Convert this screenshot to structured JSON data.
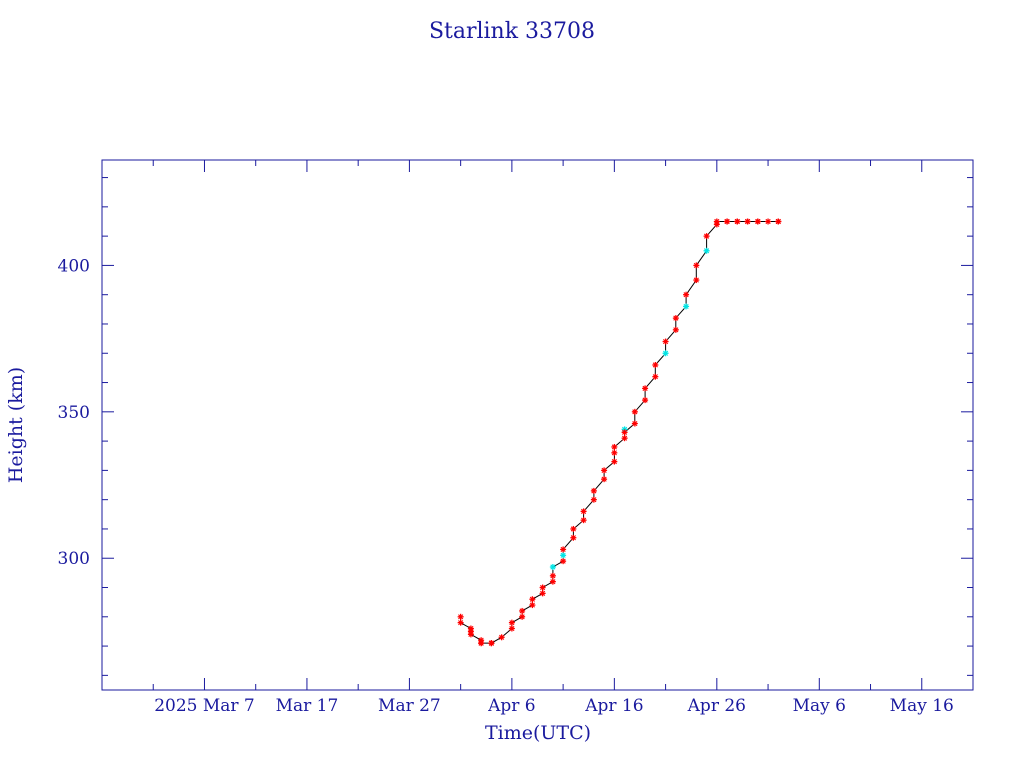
{
  "chart_data": {
    "type": "line",
    "title": "Starlink 33708",
    "xlabel": "Time(UTC)",
    "ylabel": "Height (km)",
    "x_tick_labels": [
      "2025 Mar  7",
      "Mar 17",
      "Mar 27",
      "Apr  6",
      "Apr 16",
      "Apr 26",
      "May  6",
      "May 16"
    ],
    "x_tick_dates": [
      "2025-03-07",
      "2025-03-17",
      "2025-03-27",
      "2025-04-06",
      "2025-04-16",
      "2025-04-26",
      "2025-05-06",
      "2025-05-16"
    ],
    "xlim": [
      "2025-02-25",
      "2025-05-21"
    ],
    "y_ticks": [
      300,
      350,
      400
    ],
    "ylim": [
      255,
      436
    ],
    "grid": false,
    "colors": {
      "axis": "#1a1a9e",
      "line": "#000000",
      "marker": "#ff0000",
      "marker_alt": "#00e5e5"
    },
    "series": [
      {
        "x": [
          "2025-04-01",
          "2025-04-01",
          "2025-04-02",
          "2025-04-02",
          "2025-04-02",
          "2025-04-03",
          "2025-04-03",
          "2025-04-03",
          "2025-04-04",
          "2025-04-04",
          "2025-04-04",
          "2025-04-05",
          "2025-04-06",
          "2025-04-06",
          "2025-04-07",
          "2025-04-07",
          "2025-04-08",
          "2025-04-08",
          "2025-04-09",
          "2025-04-09",
          "2025-04-10",
          "2025-04-10",
          "2025-04-10",
          "2025-04-11",
          "2025-04-11",
          "2025-04-11",
          "2025-04-12",
          "2025-04-12",
          "2025-04-13",
          "2025-04-13",
          "2025-04-14",
          "2025-04-14",
          "2025-04-15",
          "2025-04-15",
          "2025-04-16",
          "2025-04-16",
          "2025-04-16",
          "2025-04-17",
          "2025-04-17",
          "2025-04-17",
          "2025-04-18",
          "2025-04-18",
          "2025-04-19",
          "2025-04-19",
          "2025-04-20",
          "2025-04-20",
          "2025-04-21",
          "2025-04-21",
          "2025-04-22",
          "2025-04-22",
          "2025-04-23",
          "2025-04-23",
          "2025-04-24",
          "2025-04-24",
          "2025-04-25",
          "2025-04-25",
          "2025-04-26",
          "2025-04-26",
          "2025-04-27",
          "2025-04-27",
          "2025-04-28",
          "2025-04-28",
          "2025-04-29",
          "2025-04-29",
          "2025-04-30",
          "2025-04-30",
          "2025-05-01",
          "2025-05-02",
          "2025-05-02"
        ],
        "y": [
          280,
          278,
          276,
          275,
          274,
          272,
          271,
          271,
          271,
          271,
          271,
          273,
          276,
          278,
          280,
          282,
          284,
          286,
          288,
          290,
          292,
          294,
          297,
          299,
          301,
          303,
          307,
          310,
          313,
          316,
          320,
          323,
          327,
          330,
          333,
          336,
          338,
          341,
          344,
          343,
          346,
          350,
          354,
          358,
          362,
          366,
          370,
          374,
          378,
          382,
          386,
          390,
          395,
          400,
          405,
          410,
          414,
          415,
          415,
          415,
          415,
          415,
          415,
          415,
          415,
          415,
          415,
          415,
          415
        ],
        "highlight_indices": [
          22,
          24,
          38,
          46,
          50,
          54
        ]
      }
    ]
  }
}
